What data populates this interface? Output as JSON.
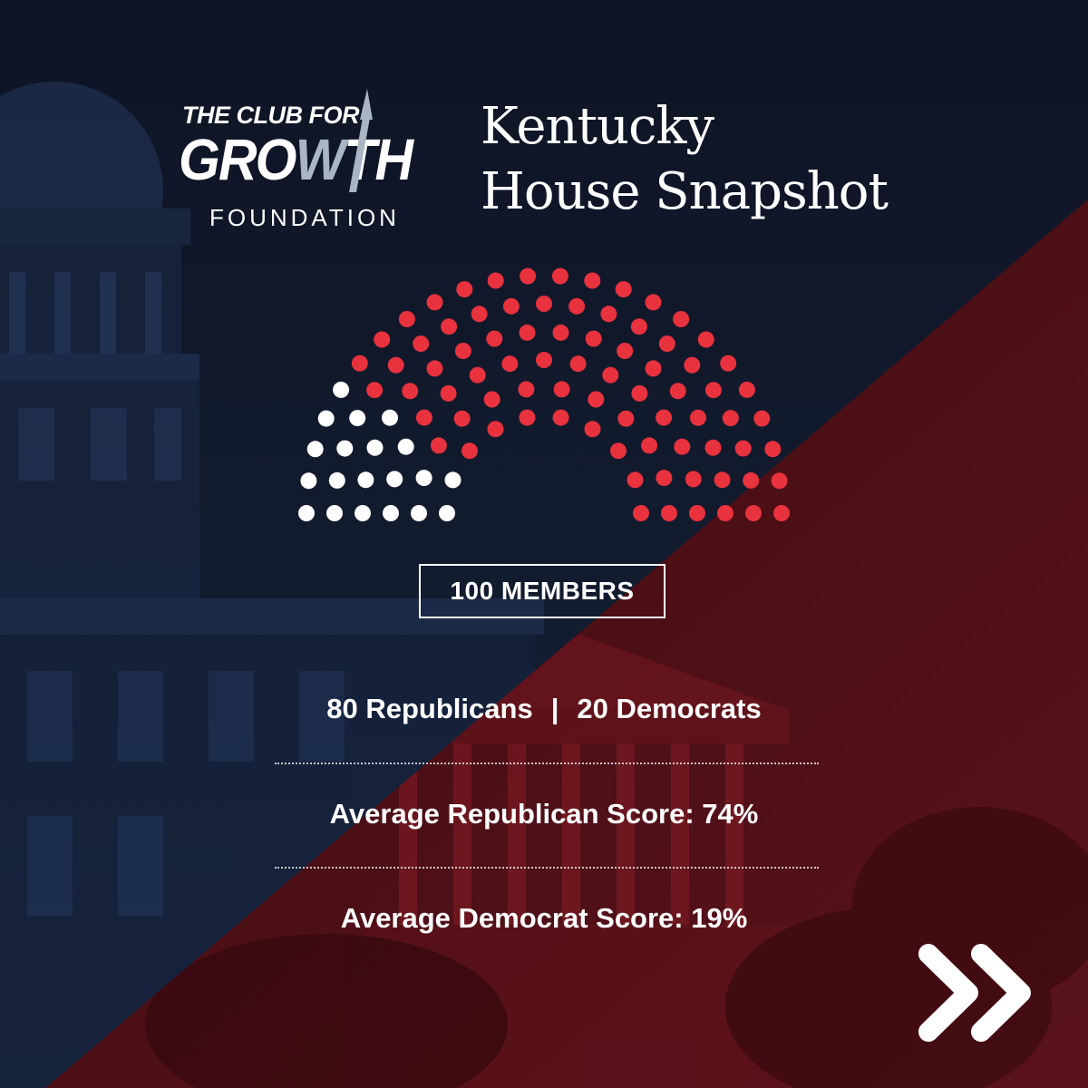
{
  "logo": {
    "line1": "THE CLUB FOR",
    "line2_a": "GRO",
    "line2_w": "W",
    "line2_b": "TH",
    "line3": "FOUNDATION"
  },
  "title": {
    "line1": "Kentucky",
    "line2": "House Snapshot"
  },
  "chamber": {
    "total_label": "100 MEMBERS",
    "republican_seats": 80,
    "democrat_seats": 20
  },
  "stats": {
    "republicans": "80 Republicans",
    "separator": "|",
    "democrats": "20 Democrats",
    "avg_republican": "Average Republican Score: 74%",
    "avg_democrat": "Average Democrat Score: 19%"
  },
  "colors": {
    "navy": "#0f1628",
    "red": "#e8323e",
    "dark_red": "#4d1016",
    "white": "#ffffff",
    "logo_accent": "#a9b4c4"
  },
  "icons": {
    "next": "double-chevron-right-icon"
  }
}
